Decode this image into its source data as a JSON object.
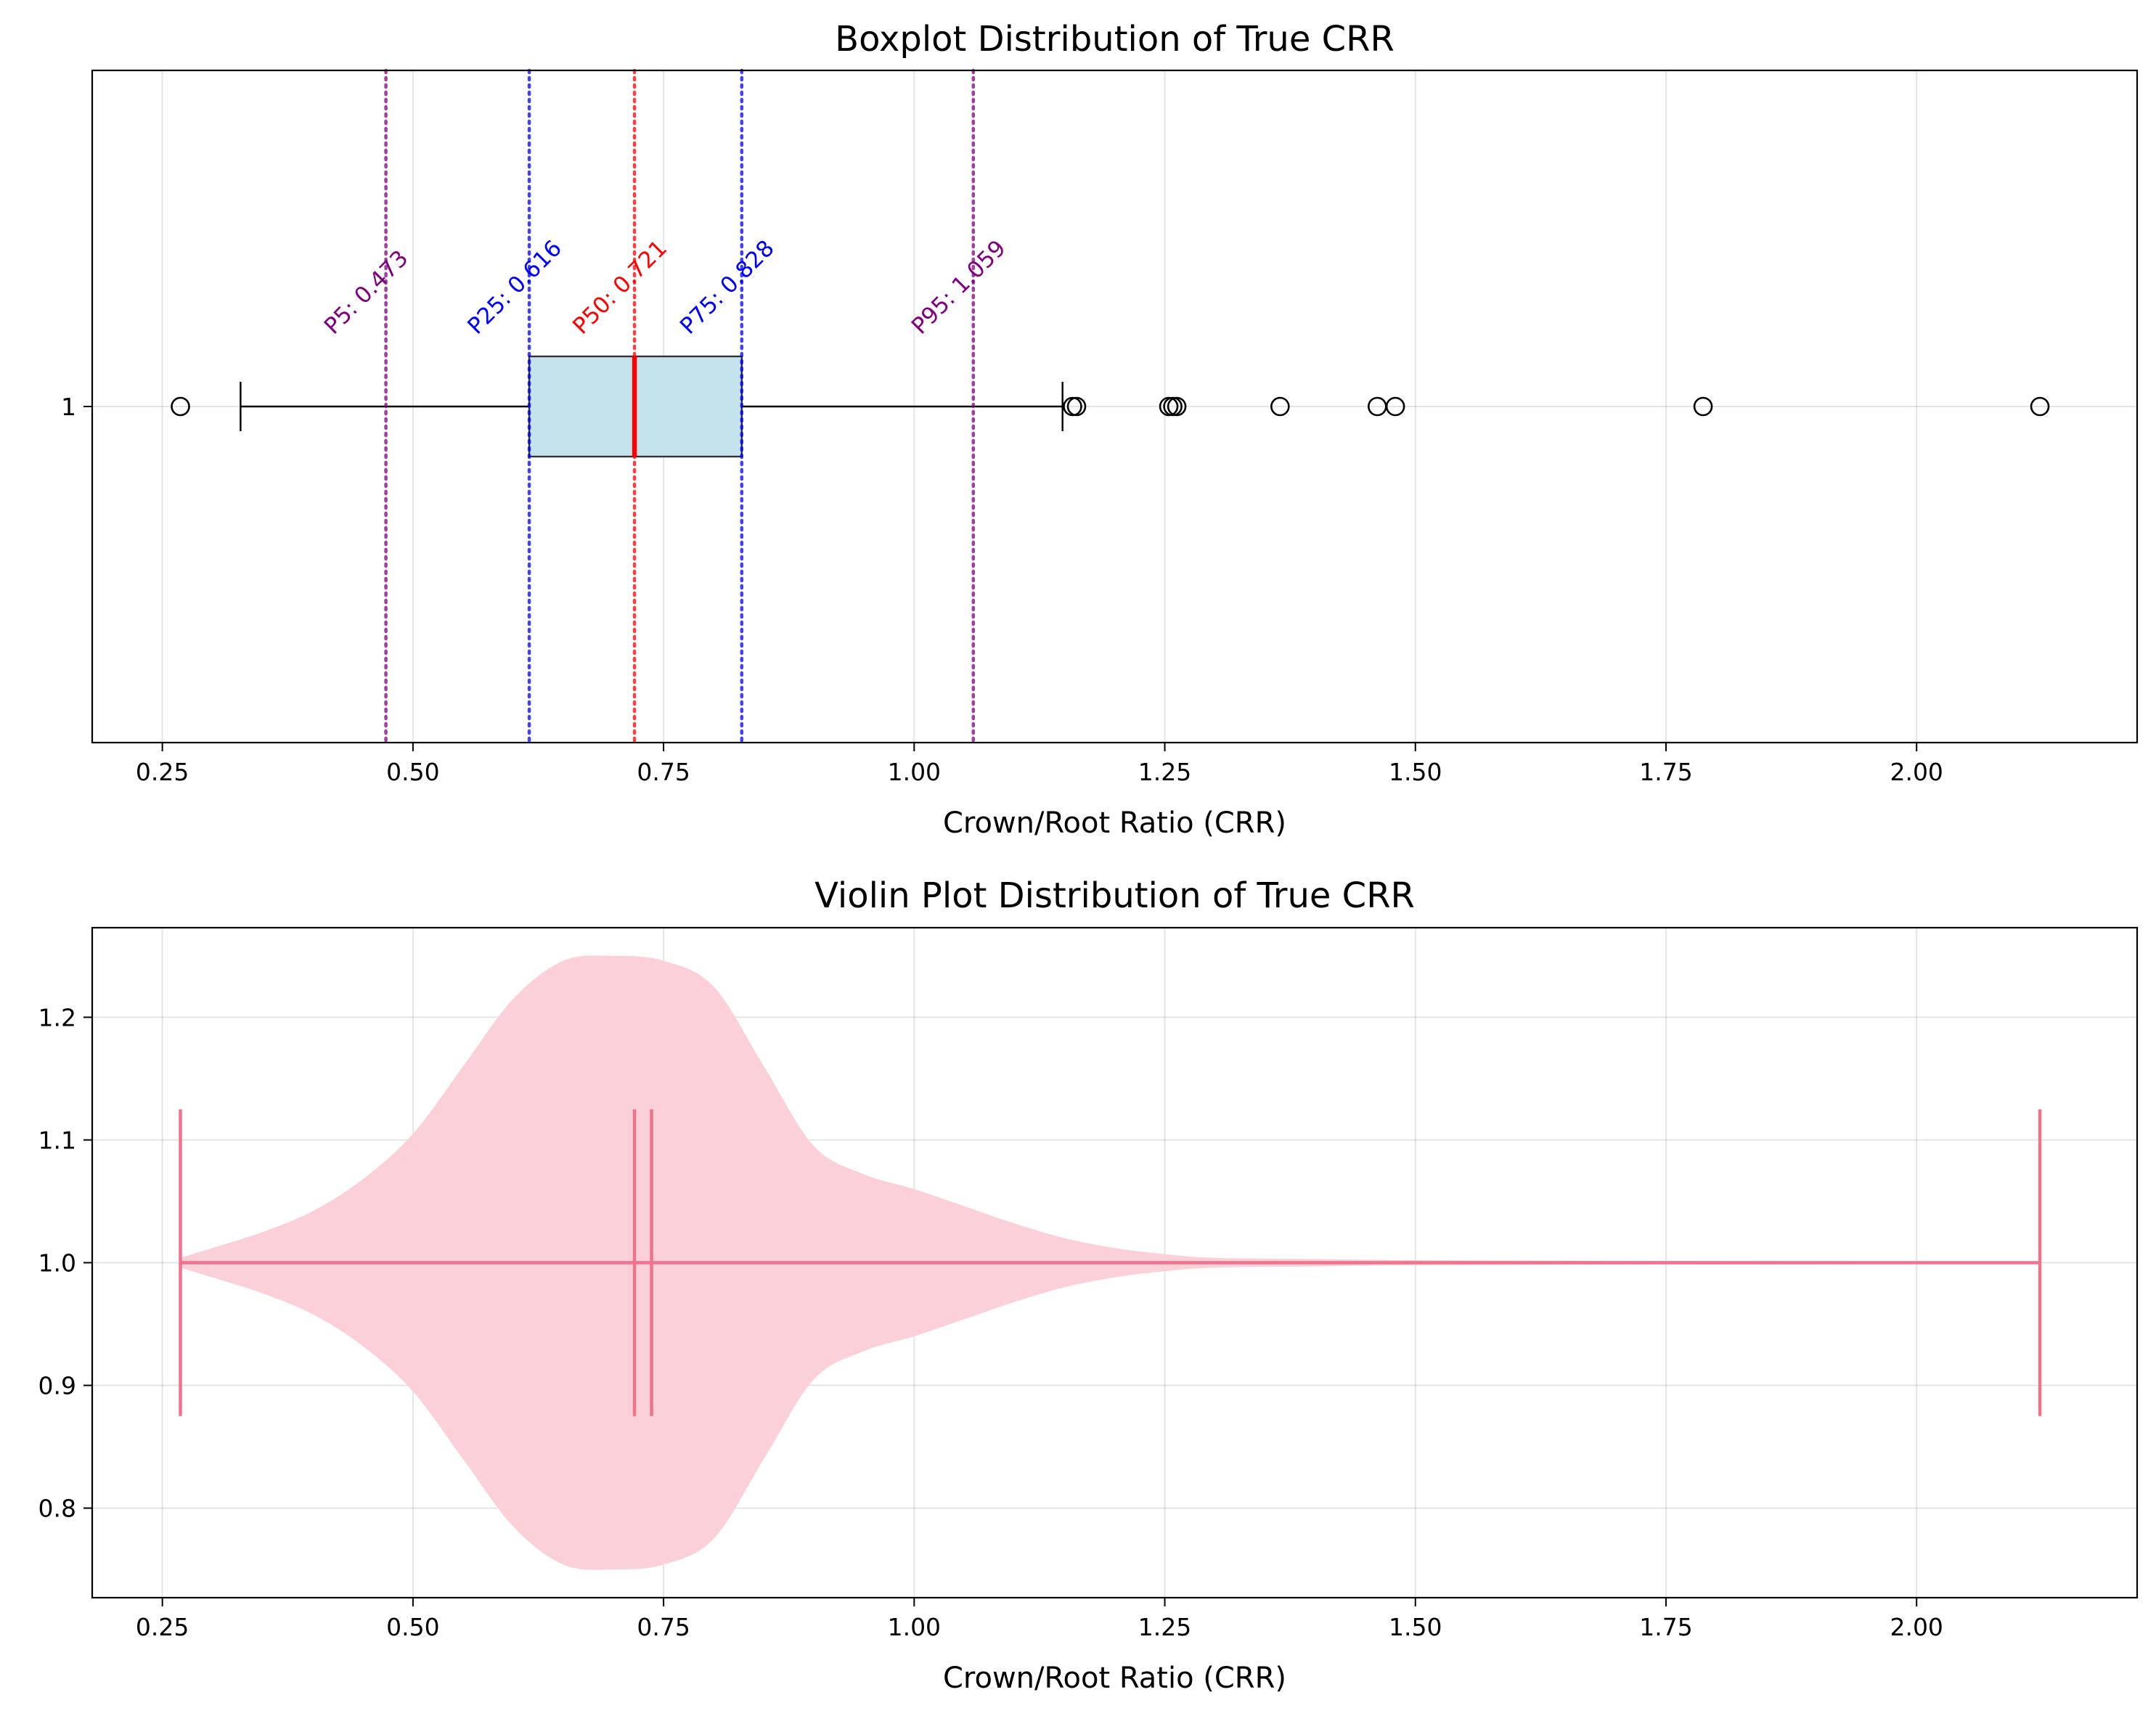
{
  "chart_data": [
    {
      "type": "boxplot",
      "title": "Boxplot Distribution of True CRR",
      "xlabel": "Crown/Root Ratio (CRR)",
      "ylabel": "",
      "orientation": "horizontal",
      "xlim": [
        0.18,
        2.22
      ],
      "x_ticks": [
        0.25,
        0.5,
        0.75,
        1.0,
        1.25,
        1.5,
        1.75,
        2.0
      ],
      "x_tick_labels": [
        "0.25",
        "0.50",
        "0.75",
        "1.00",
        "1.25",
        "1.50",
        "1.75",
        "2.00"
      ],
      "y_tick_labels": [
        "1"
      ],
      "grid": true,
      "box": {
        "q1": 0.616,
        "median": 0.721,
        "q3": 0.828,
        "whisker_low": 0.328,
        "whisker_high": 1.148,
        "fill": "#c5e3ec",
        "median_color": "#ff0000",
        "outliers": [
          0.268,
          1.158,
          1.162,
          1.254,
          1.258,
          1.262,
          1.365,
          1.462,
          1.48,
          1.787,
          2.123
        ]
      },
      "percentiles": [
        {
          "label": "P5: 0.473",
          "value": 0.473,
          "color": "#800080"
        },
        {
          "label": "P25: 0.616",
          "value": 0.616,
          "color": "#0000ff"
        },
        {
          "label": "P50: 0.721",
          "value": 0.721,
          "color": "#ff0000"
        },
        {
          "label": "P75: 0.828",
          "value": 0.828,
          "color": "#0000ff"
        },
        {
          "label": "P95: 1.059",
          "value": 1.059,
          "color": "#800080"
        }
      ]
    },
    {
      "type": "violin",
      "title": "Violin Plot Distribution of True CRR",
      "xlabel": "Crown/Root Ratio (CRR)",
      "ylabel": "",
      "xlim": [
        0.18,
        2.22
      ],
      "ylim": [
        0.727,
        1.273
      ],
      "x_ticks": [
        0.25,
        0.5,
        0.75,
        1.0,
        1.25,
        1.5,
        1.75,
        2.0
      ],
      "x_tick_labels": [
        "0.25",
        "0.50",
        "0.75",
        "1.00",
        "1.25",
        "1.50",
        "1.75",
        "2.00"
      ],
      "y_ticks": [
        0.8,
        0.9,
        1.0,
        1.1,
        1.2
      ],
      "y_tick_labels": [
        "0.8",
        "0.9",
        "1.0",
        "1.1",
        "1.2"
      ],
      "grid": true,
      "fill_color": "#fbd0d9",
      "line_color": "#f0738c",
      "min": 0.268,
      "max": 2.123,
      "median": 0.721,
      "mean": 0.738,
      "center": 1.0,
      "cap_half_height": 0.125,
      "density_profile": [
        {
          "x": 0.268,
          "half_width": 0.004
        },
        {
          "x": 0.3,
          "half_width": 0.012
        },
        {
          "x": 0.35,
          "half_width": 0.025
        },
        {
          "x": 0.4,
          "half_width": 0.042
        },
        {
          "x": 0.45,
          "half_width": 0.068
        },
        {
          "x": 0.5,
          "half_width": 0.105
        },
        {
          "x": 0.55,
          "half_width": 0.16
        },
        {
          "x": 0.6,
          "half_width": 0.215
        },
        {
          "x": 0.65,
          "half_width": 0.246
        },
        {
          "x": 0.7,
          "half_width": 0.25
        },
        {
          "x": 0.75,
          "half_width": 0.246
        },
        {
          "x": 0.8,
          "half_width": 0.225
        },
        {
          "x": 0.85,
          "half_width": 0.16
        },
        {
          "x": 0.9,
          "half_width": 0.095
        },
        {
          "x": 0.95,
          "half_width": 0.072
        },
        {
          "x": 1.0,
          "half_width": 0.06
        },
        {
          "x": 1.05,
          "half_width": 0.046
        },
        {
          "x": 1.1,
          "half_width": 0.032
        },
        {
          "x": 1.15,
          "half_width": 0.02
        },
        {
          "x": 1.2,
          "half_width": 0.012
        },
        {
          "x": 1.25,
          "half_width": 0.007
        },
        {
          "x": 1.3,
          "half_width": 0.004
        },
        {
          "x": 1.4,
          "half_width": 0.003
        },
        {
          "x": 1.5,
          "half_width": 0.002
        },
        {
          "x": 1.75,
          "half_width": 0.0015
        },
        {
          "x": 2.123,
          "half_width": 0.001
        }
      ]
    }
  ]
}
